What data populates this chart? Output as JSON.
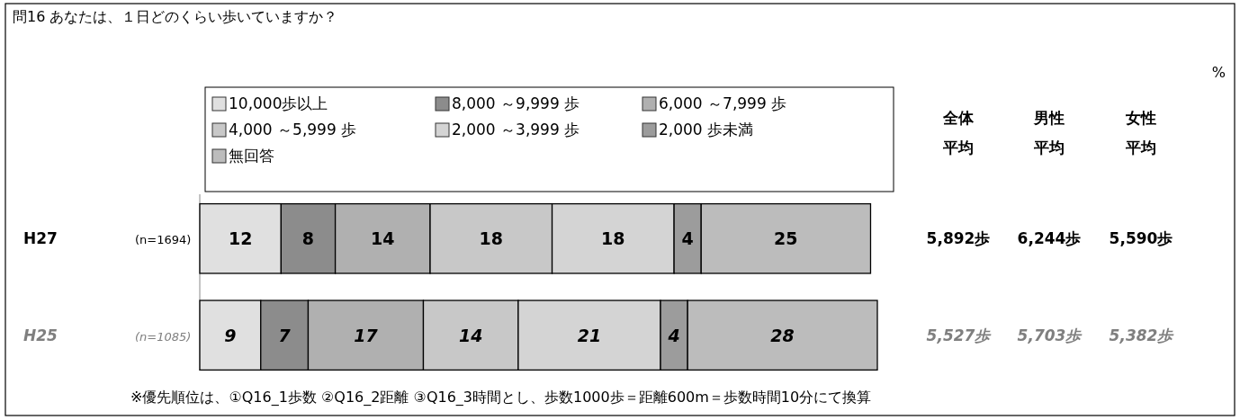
{
  "chart_data": {
    "type": "bar",
    "orientation": "horizontal",
    "stacked": true,
    "title": "問16 あなたは、１日どのくらい歩いていますか？",
    "categories": [
      "H27",
      "H25"
    ],
    "xlim": [
      0,
      100
    ],
    "series": [
      {
        "name": "10,000歩以上",
        "color": "#e0e0e0",
        "values": [
          12,
          9
        ]
      },
      {
        "name": "8,000 ～9,999 歩",
        "color": "#8c8c8c",
        "values": [
          8,
          7
        ]
      },
      {
        "name": "6,000 ～7,999 歩",
        "color": "#b0b0b0",
        "values": [
          14,
          17
        ]
      },
      {
        "name": "4,000 ～5,999 歩",
        "color": "#c8c8c8",
        "values": [
          18,
          14
        ]
      },
      {
        "name": "2,000 ～3,999 歩",
        "color": "#d4d4d4",
        "values": [
          18,
          21
        ]
      },
      {
        "name": "2,000 歩未満",
        "color": "#9c9c9c",
        "values": [
          4,
          4
        ]
      },
      {
        "name": "無回答",
        "color": "#bcbcbc",
        "values": [
          25,
          28
        ]
      }
    ],
    "data_labels": true,
    "legend": "top",
    "annotations": [
      "%",
      "(n=1694)",
      "(n=1085)",
      "全体平均",
      "男性平均",
      "女性平均",
      "5,892歩",
      "6,244歩",
      "5,590歩",
      "5,527歩",
      "5,703歩",
      "5,382歩",
      "※優先順位は、①Q16_1歩数 ②Q16_2距離 ③Q16_3時間とし、歩数1000歩＝距離600m＝歩数時間10分にて換算"
    ]
  }
}
